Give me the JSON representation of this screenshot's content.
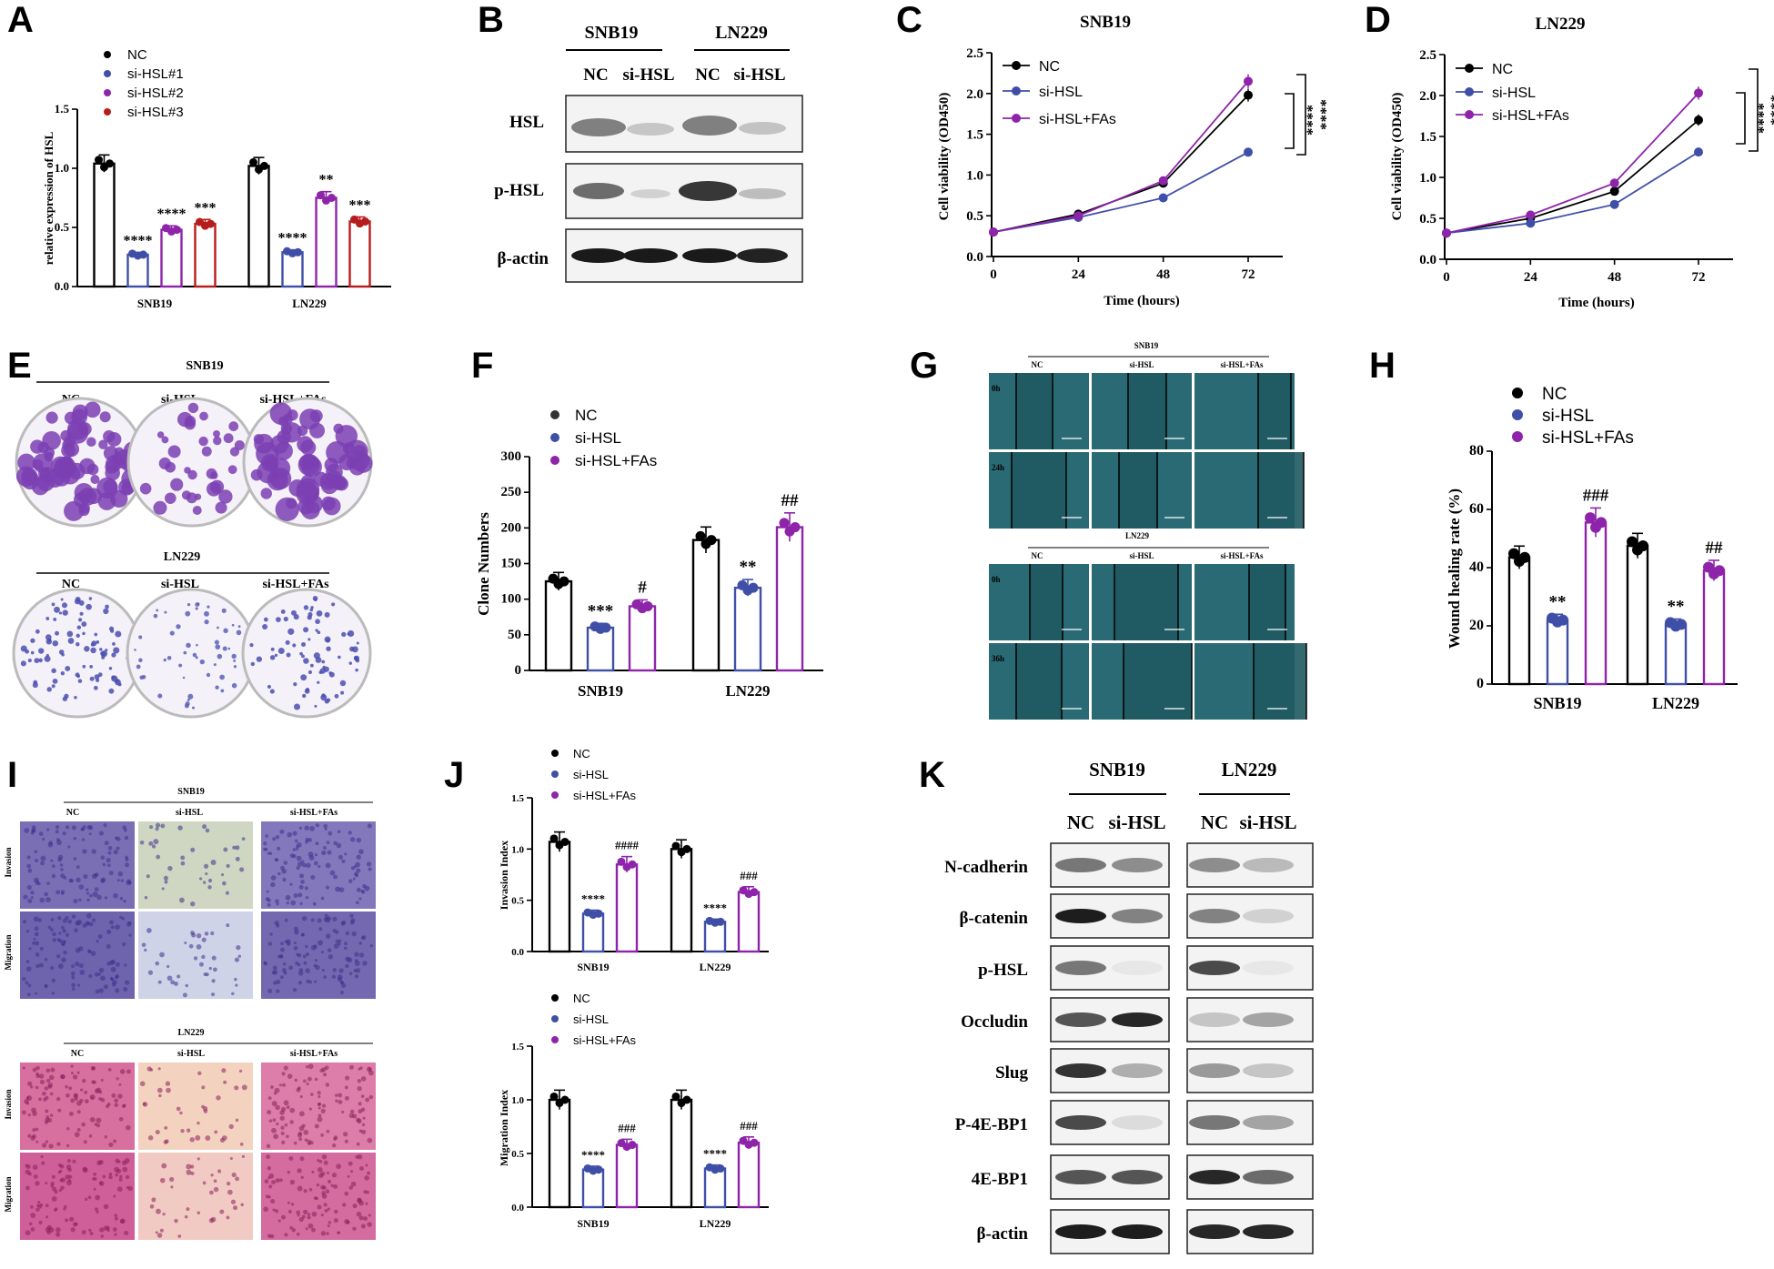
{
  "letters": [
    "A",
    "B",
    "C",
    "D",
    "E",
    "F",
    "G",
    "H",
    "I",
    "J",
    "K"
  ],
  "colors": {
    "nc": "#000000",
    "si1": "#3f4fa8",
    "si2": "#8e24aa",
    "si3": "#b71c1c",
    "fas": "#8e24aa",
    "purple_stain": "#7b3fb3",
    "pink_stain": "#d86fa6",
    "wound": "#2a6a74"
  },
  "panelA": {
    "legend": [
      "NC",
      "si-HSL#1",
      "si-HSL#2",
      "si-HSL#3"
    ],
    "ylabel": "relative expression of HSL",
    "ticks": [
      "0.0",
      "0.5",
      "1.0",
      "1.5"
    ],
    "groups": [
      "SNB19",
      "LN229"
    ],
    "stars": {
      "snb": [
        "****",
        "****",
        "***"
      ],
      "ln": [
        "****",
        "**",
        "***"
      ]
    }
  },
  "panelB": {
    "cells": [
      "SNB19",
      "LN229"
    ],
    "lanes": [
      "NC",
      "si-HSL",
      "NC",
      "si-HSL"
    ],
    "rows": [
      "HSL",
      "p-HSL",
      "β-actin"
    ]
  },
  "panelC": {
    "title": "SNB19",
    "legend": [
      "NC",
      "si-HSL",
      "si-HSL+FAs"
    ],
    "ylabel": "Cell viability (OD450)",
    "xlabel": "Time (hours)",
    "xticks": [
      "0",
      "24",
      "48",
      "72"
    ],
    "yticks": [
      "0.0",
      "0.5",
      "1.0",
      "1.5",
      "2.0",
      "2.5"
    ],
    "stars": [
      "****",
      "****"
    ]
  },
  "panelD": {
    "title": "LN229",
    "legend": [
      "NC",
      "si-HSL",
      "si-HSL+FAs"
    ],
    "ylabel": "Cell viability (OD450)",
    "xlabel": "Time (hours)",
    "xticks": [
      "0",
      "24",
      "48",
      "72"
    ],
    "yticks": [
      "0.0",
      "0.5",
      "1.0",
      "1.5",
      "2.0",
      "2.5"
    ],
    "stars": [
      "****",
      "****"
    ]
  },
  "panelE": {
    "top": "SNB19",
    "bottom": "LN229",
    "cols": [
      "NC",
      "si-HSL",
      "si-HSL+FAs"
    ]
  },
  "panelF": {
    "legend": [
      "NC",
      "si-HSL",
      "si-HSL+FAs"
    ],
    "ylabel": "Clone Numbers",
    "yticks": [
      "0",
      "50",
      "100",
      "150",
      "200",
      "250",
      "300"
    ],
    "groups": [
      "SNB19",
      "LN229"
    ],
    "marks": {
      "snb": [
        "***",
        "#"
      ],
      "ln": [
        "**",
        "##"
      ]
    }
  },
  "panelG": {
    "top": "SNB19",
    "bottom": "LN229",
    "cols": [
      "NC",
      "si-HSL",
      "si-HSL+FAs"
    ],
    "rowsTop": [
      "0h",
      "24h"
    ],
    "rowsBottom": [
      "0h",
      "36h"
    ]
  },
  "panelH": {
    "legend": [
      "NC",
      "si-HSL",
      "si-HSL+FAs"
    ],
    "ylabel": "Wound healing rate (%)",
    "yticks": [
      "0",
      "20",
      "40",
      "60",
      "80"
    ],
    "groups": [
      "SNB19",
      "LN229"
    ],
    "marks": {
      "snb": [
        "**",
        "###"
      ],
      "ln": [
        "**",
        "##"
      ]
    }
  },
  "panelI": {
    "top": "SNB19",
    "bottom": "LN229",
    "cols": [
      "NC",
      "si-HSL",
      "si-HSL+FAs"
    ],
    "rows": [
      "Invasion",
      "Migration"
    ]
  },
  "panelJ": {
    "legend": [
      "NC",
      "si-HSL",
      "si-HSL+FAs"
    ],
    "inv": {
      "ylabel": "Invasion Index",
      "yticks": [
        "0.0",
        "0.5",
        "1.0",
        "1.5"
      ],
      "groups": [
        "SNB19",
        "LN229"
      ],
      "marks": {
        "snb": [
          "****",
          "####"
        ],
        "ln": [
          "****",
          "###"
        ]
      }
    },
    "mig": {
      "ylabel": "Migration Index",
      "yticks": [
        "0.0",
        "0.5",
        "1.0",
        "1.5"
      ],
      "groups": [
        "SNB19",
        "LN229"
      ],
      "marks": {
        "snb": [
          "****",
          "###"
        ],
        "ln": [
          "****",
          "###"
        ]
      }
    }
  },
  "panelK": {
    "cells": [
      "SNB19",
      "LN229"
    ],
    "lanes": [
      "NC",
      "si-HSL",
      "NC",
      "si-HSL"
    ],
    "rows": [
      "N-cadherin",
      "β-catenin",
      "p-HSL",
      "Occludin",
      "Slug",
      "P-4E-BP1",
      "4E-BP1",
      "β-actin"
    ]
  },
  "chart_data": [
    {
      "panel": "A",
      "type": "bar",
      "title": "",
      "ylabel": "relative expression of HSL",
      "categories": [
        "SNB19",
        "LN229"
      ],
      "ylim": [
        0,
        1.5
      ],
      "series": [
        {
          "name": "NC",
          "values": [
            1.04,
            1.02
          ]
        },
        {
          "name": "si-HSL#1",
          "values": [
            0.27,
            0.29
          ]
        },
        {
          "name": "si-HSL#2",
          "values": [
            0.48,
            0.75
          ]
        },
        {
          "name": "si-HSL#3",
          "values": [
            0.53,
            0.55
          ]
        }
      ]
    },
    {
      "panel": "C",
      "type": "line",
      "title": "SNB19",
      "xlabel": "Time (hours)",
      "ylabel": "Cell viability (OD450)",
      "x": [
        0,
        24,
        48,
        72
      ],
      "ylim": [
        0,
        2.5
      ],
      "series": [
        {
          "name": "NC",
          "values": [
            0.3,
            0.52,
            0.9,
            1.98
          ]
        },
        {
          "name": "si-HSL",
          "values": [
            0.3,
            0.48,
            0.72,
            1.28
          ]
        },
        {
          "name": "si-HSL+FAs",
          "values": [
            0.3,
            0.5,
            0.93,
            2.15
          ]
        }
      ]
    },
    {
      "panel": "D",
      "type": "line",
      "title": "LN229",
      "xlabel": "Time (hours)",
      "ylabel": "Cell viability (OD450)",
      "x": [
        0,
        24,
        48,
        72
      ],
      "ylim": [
        0,
        2.5
      ],
      "series": [
        {
          "name": "NC",
          "values": [
            0.32,
            0.5,
            0.83,
            1.7
          ]
        },
        {
          "name": "si-HSL",
          "values": [
            0.32,
            0.44,
            0.67,
            1.31
          ]
        },
        {
          "name": "si-HSL+FAs",
          "values": [
            0.32,
            0.54,
            0.93,
            2.03
          ]
        }
      ]
    },
    {
      "panel": "F",
      "type": "bar",
      "ylabel": "Clone Numbers",
      "categories": [
        "SNB19",
        "LN229"
      ],
      "ylim": [
        0,
        300
      ],
      "series": [
        {
          "name": "NC",
          "values": [
            125,
            183
          ]
        },
        {
          "name": "si-HSL",
          "values": [
            60,
            116
          ]
        },
        {
          "name": "si-HSL+FAs",
          "values": [
            90,
            201
          ]
        }
      ]
    },
    {
      "panel": "H",
      "type": "bar",
      "ylabel": "Wound healing rate (%)",
      "categories": [
        "SNB19",
        "LN229"
      ],
      "ylim": [
        0,
        80
      ],
      "series": [
        {
          "name": "NC",
          "values": [
            43.5,
            47.5
          ]
        },
        {
          "name": "si-HSL",
          "values": [
            22,
            20.5
          ]
        },
        {
          "name": "si-HSL+FAs",
          "values": [
            55.5,
            39
          ]
        }
      ]
    },
    {
      "panel": "J-invasion",
      "type": "bar",
      "ylabel": "Invasion Index",
      "categories": [
        "SNB19",
        "LN229"
      ],
      "ylim": [
        0,
        1.5
      ],
      "series": [
        {
          "name": "NC",
          "values": [
            1.07,
            1.0
          ]
        },
        {
          "name": "si-HSL",
          "values": [
            0.37,
            0.29
          ]
        },
        {
          "name": "si-HSL+FAs",
          "values": [
            0.85,
            0.58
          ]
        }
      ]
    },
    {
      "panel": "J-migration",
      "type": "bar",
      "ylabel": "Migration Index",
      "categories": [
        "SNB19",
        "LN229"
      ],
      "ylim": [
        0,
        1.5
      ],
      "series": [
        {
          "name": "NC",
          "values": [
            1.0,
            1.0
          ]
        },
        {
          "name": "si-HSL",
          "values": [
            0.35,
            0.36
          ]
        },
        {
          "name": "si-HSL+FAs",
          "values": [
            0.58,
            0.6
          ]
        }
      ]
    }
  ]
}
